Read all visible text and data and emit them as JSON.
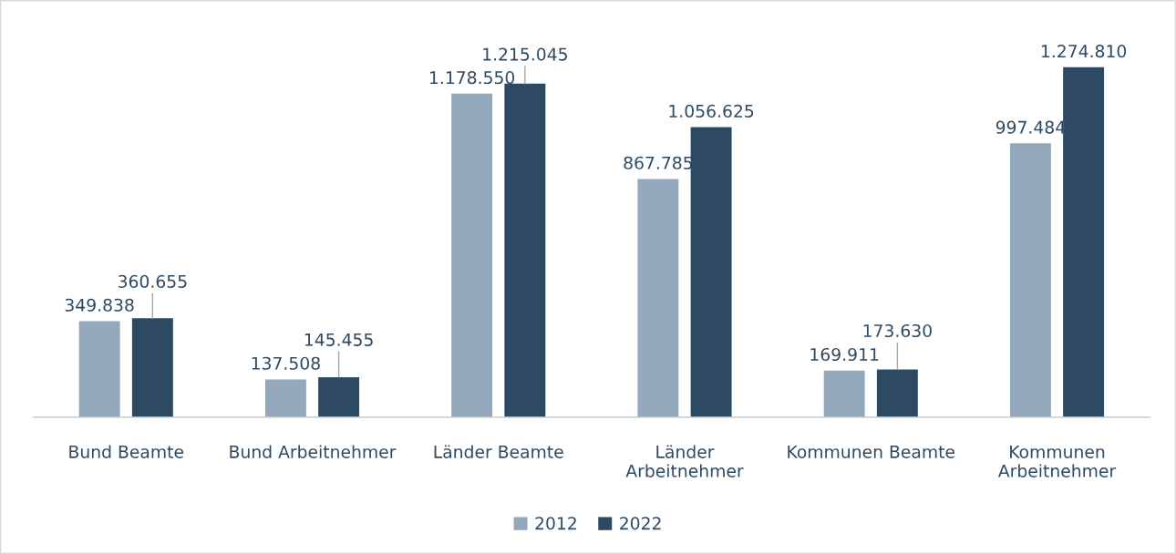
{
  "chart_data": {
    "type": "bar",
    "categories": [
      "Bund Beamte",
      "Bund Arbeitnehmer",
      "Länder Beamte",
      "Länder Arbeitnehmer",
      "Kommunen Beamte",
      "Kommunen Arbeitnehmer"
    ],
    "series": [
      {
        "name": "2012",
        "color": "#94a8bb",
        "values": [
          349838,
          137508,
          1178550,
          867785,
          169911,
          997484
        ],
        "value_labels": [
          "349.838",
          "137.508",
          "1.178.550",
          "867.785",
          "169.911",
          "997.484"
        ]
      },
      {
        "name": "2022",
        "color": "#2e4a63",
        "values": [
          360655,
          145455,
          1215045,
          1056625,
          173630,
          1274810
        ],
        "value_labels": [
          "360.655",
          "145.455",
          "1.215.045",
          "1.056.625",
          "173.630",
          "1.274.810"
        ]
      }
    ],
    "legend": "bottom",
    "grid": false
  }
}
